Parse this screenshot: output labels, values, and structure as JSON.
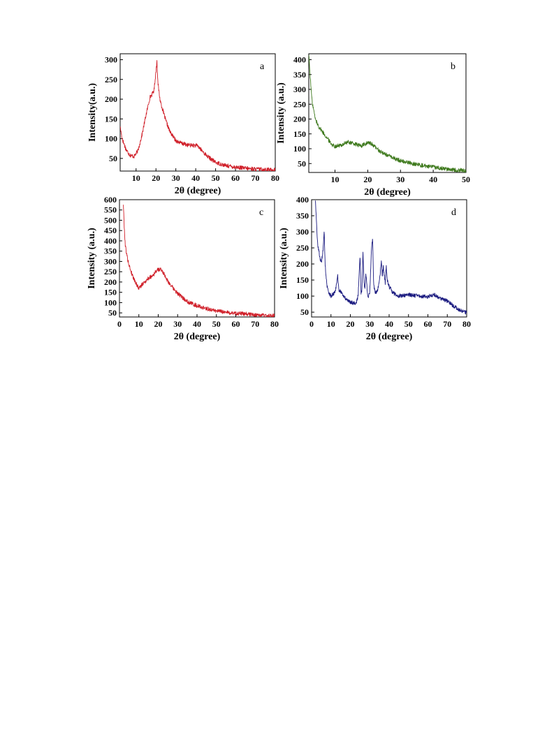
{
  "chart_data": [
    {
      "type": "line",
      "panel_label": "a",
      "xlabel": "2θ (degree)",
      "ylabel": "Intensity(a.u.)",
      "xlim": [
        2,
        80
      ],
      "ylim": [
        18,
        315
      ],
      "xticks": [
        10,
        20,
        30,
        40,
        50,
        60,
        70,
        80
      ],
      "yticks": [
        50,
        100,
        150,
        200,
        250,
        300
      ],
      "grid": false,
      "color": "#d0202a",
      "series": [
        {
          "x": [
            2,
            3,
            5,
            7,
            9,
            11,
            13,
            15,
            17,
            18,
            19,
            20,
            20.5,
            21,
            22,
            23,
            25,
            27,
            30,
            33,
            36,
            39,
            41,
            43,
            46,
            50,
            55,
            60,
            65,
            70,
            75,
            80
          ],
          "y": [
            130,
            100,
            72,
            58,
            55,
            70,
            110,
            160,
            205,
            212,
            222,
            270,
            298,
            240,
            200,
            180,
            145,
            118,
            95,
            88,
            84,
            83,
            82,
            70,
            55,
            40,
            32,
            28,
            25,
            23,
            22,
            21
          ]
        }
      ]
    },
    {
      "type": "line",
      "panel_label": "b",
      "xlabel": "2θ (degree)",
      "ylabel": "Intensity (a.u.)",
      "xlim": [
        2,
        50
      ],
      "ylim": [
        20,
        420
      ],
      "xticks": [
        10,
        20,
        30,
        40,
        50
      ],
      "yticks": [
        50,
        100,
        150,
        200,
        250,
        300,
        350,
        400
      ],
      "grid": false,
      "color": "#3f7a1e",
      "series": [
        {
          "x": [
            2,
            2.5,
            3,
            4,
            5,
            6,
            7,
            8,
            9,
            10,
            11,
            12,
            13,
            14,
            15,
            16,
            17,
            18,
            19,
            20,
            21,
            22,
            23,
            24,
            26,
            28,
            30,
            33,
            36,
            40,
            44,
            48,
            50
          ],
          "y": [
            420,
            330,
            260,
            200,
            175,
            160,
            145,
            130,
            115,
            108,
            110,
            112,
            118,
            122,
            120,
            116,
            112,
            110,
            114,
            120,
            118,
            108,
            98,
            90,
            78,
            68,
            60,
            52,
            45,
            38,
            32,
            28,
            25
          ]
        }
      ]
    },
    {
      "type": "line",
      "panel_label": "c",
      "xlabel": "2θ (degree)",
      "ylabel": "Intensity (a.u.)",
      "xlim": [
        0,
        80
      ],
      "ylim": [
        30,
        600
      ],
      "xticks": [
        0,
        10,
        20,
        30,
        40,
        50,
        60,
        70,
        80
      ],
      "yticks": [
        50,
        100,
        150,
        200,
        250,
        300,
        350,
        400,
        450,
        500,
        550,
        600
      ],
      "grid": false,
      "color": "#d0202a",
      "series": [
        {
          "x": [
            2,
            2.5,
            3,
            4,
            5,
            6,
            7,
            8,
            9,
            10,
            12,
            14,
            16,
            18,
            19,
            20,
            21,
            22,
            23,
            24,
            26,
            28,
            30,
            33,
            36,
            40,
            45,
            50,
            55,
            60,
            65,
            70,
            75,
            80
          ],
          "y": [
            580,
            460,
            380,
            320,
            280,
            250,
            225,
            205,
            185,
            170,
            190,
            210,
            225,
            240,
            255,
            260,
            262,
            255,
            240,
            220,
            190,
            165,
            145,
            120,
            100,
            85,
            70,
            60,
            52,
            48,
            45,
            40,
            37,
            35
          ]
        }
      ]
    },
    {
      "type": "line",
      "panel_label": "d",
      "xlabel": "2θ (degree)",
      "ylabel": "Intensity (a.u.)",
      "xlim": [
        0,
        80
      ],
      "ylim": [
        35,
        400
      ],
      "xticks": [
        0,
        10,
        20,
        30,
        40,
        50,
        60,
        70,
        80
      ],
      "yticks": [
        50,
        100,
        150,
        200,
        250,
        300,
        350,
        400
      ],
      "grid": false,
      "color": "#1b1b80",
      "series": [
        {
          "x": [
            2,
            2.5,
            3,
            4,
            5,
            6,
            6.5,
            7,
            7.5,
            8,
            9,
            10,
            12,
            13,
            13.5,
            14,
            15,
            17,
            19,
            21,
            23,
            24,
            25,
            25.5,
            26,
            26.5,
            27,
            27.5,
            28,
            29,
            30,
            31,
            31.5,
            32,
            32.5,
            33,
            34,
            35,
            36,
            36.5,
            37,
            38,
            38.5,
            39,
            40,
            42,
            45,
            50,
            55,
            60,
            63,
            66,
            70,
            73,
            76,
            80
          ],
          "y": [
            400,
            330,
            270,
            230,
            200,
            250,
            300,
            200,
            160,
            130,
            110,
            100,
            110,
            140,
            165,
            120,
            115,
            95,
            85,
            80,
            78,
            100,
            230,
            110,
            120,
            240,
            150,
            120,
            170,
            95,
            110,
            260,
            280,
            140,
            120,
            110,
            115,
            145,
            210,
            160,
            190,
            140,
            195,
            150,
            130,
            110,
            100,
            105,
            100,
            98,
            105,
            95,
            85,
            70,
            58,
            48
          ]
        }
      ]
    }
  ]
}
